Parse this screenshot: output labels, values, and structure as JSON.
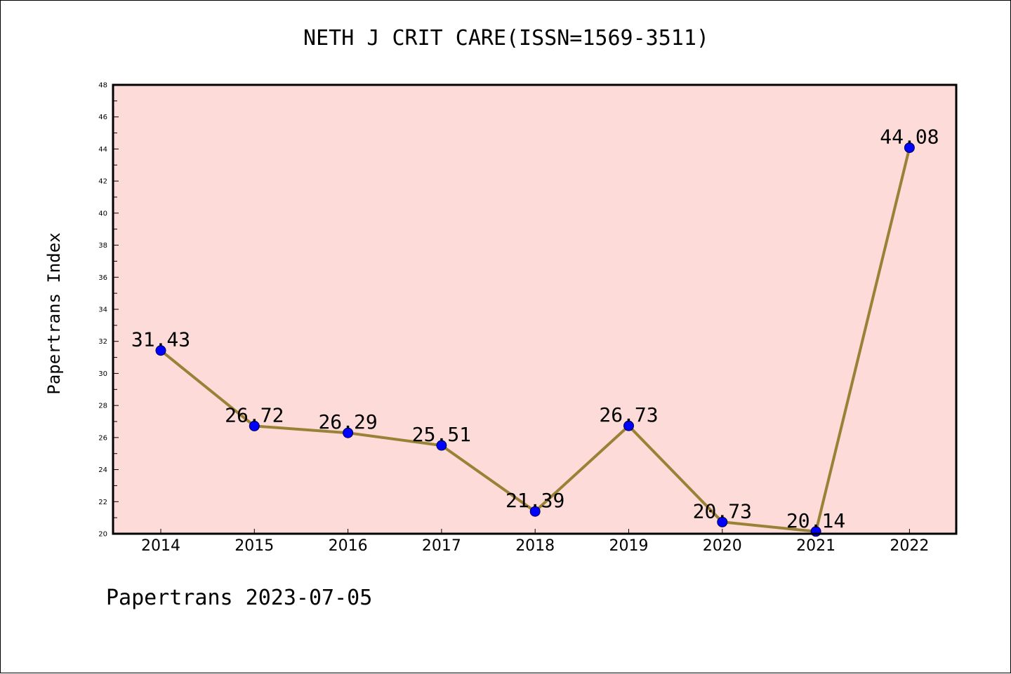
{
  "chart_data": {
    "type": "line",
    "title": "NETH J CRIT CARE(ISSN=1569-3511)",
    "ylabel": "Papertrans Index",
    "xlabel": "",
    "categories": [
      "2014",
      "2015",
      "2016",
      "2017",
      "2018",
      "2019",
      "2020",
      "2021",
      "2022"
    ],
    "series": [
      {
        "values": [
          31.43,
          26.72,
          26.29,
          25.51,
          21.39,
          26.73,
          20.73,
          20.14,
          44.08
        ],
        "data_labels": [
          "31.43",
          "26.72",
          "26.29",
          "25.51",
          "21.39",
          "26.73",
          "20.73",
          "20.14",
          "44.08"
        ]
      }
    ],
    "ylim": [
      20,
      48
    ],
    "yticks": [
      "20",
      "22",
      "24",
      "26",
      "28",
      "30",
      "32",
      "34",
      "36",
      "38",
      "40",
      "42",
      "44",
      "46",
      "48"
    ],
    "grid": false,
    "colors": {
      "plot_background": "#fddbd8",
      "line": "#998236",
      "marker": "#0000ff",
      "axis": "#000000"
    }
  },
  "footer": "Papertrans 2023-07-05"
}
